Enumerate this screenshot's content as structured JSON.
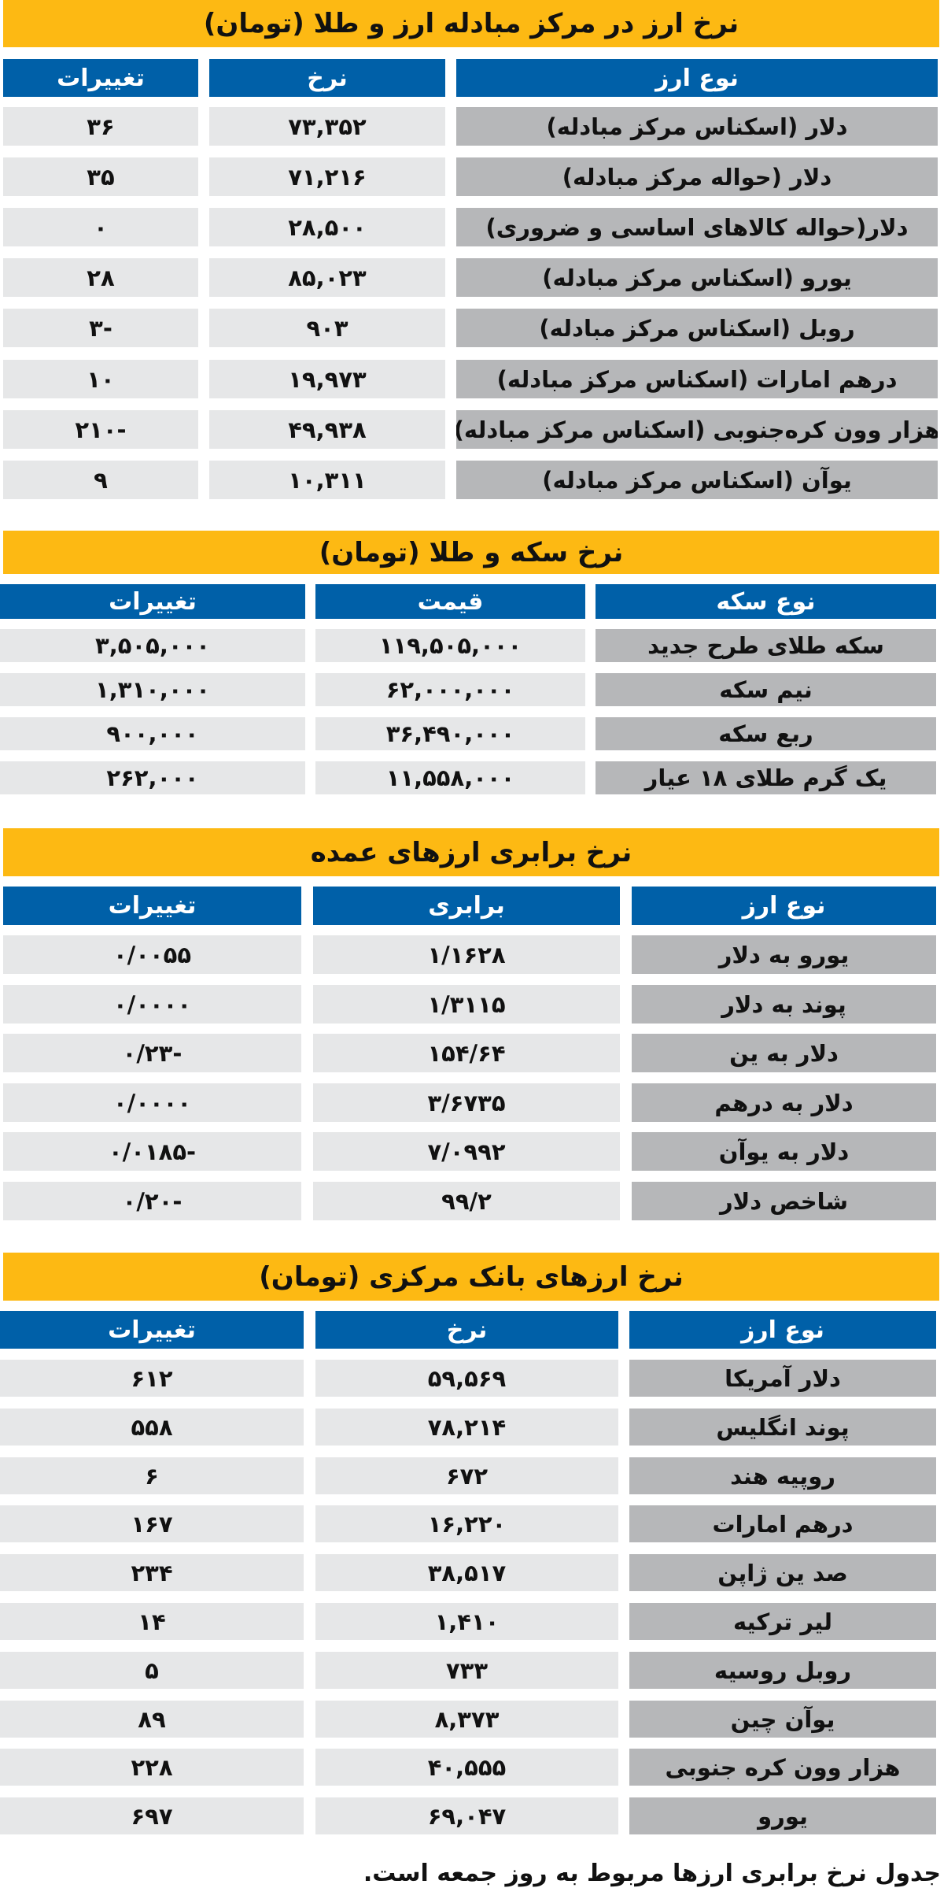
{
  "colors": {
    "title_bar": "#FDB913",
    "header": "#0060A8",
    "label_cell": "#B6B7B9",
    "value_cell": "#E6E7E8"
  },
  "tables": [
    {
      "title": "نرخ ارز در مرکز مبادله ارز و طلا (تومان)",
      "headers": [
        "نوع ارز",
        "نرخ",
        "تغییرات"
      ],
      "rows": [
        [
          "دلار (اسکناس مرکز مبادله)",
          "۷۳,۳۵۲",
          "۳۶"
        ],
        [
          "دلار (حواله مرکز مبادله)",
          "۷۱,۲۱۶",
          "۳۵"
        ],
        [
          "دلار(حواله کالاهای اساسی و ضروری)",
          "۲۸,۵۰۰",
          "۰"
        ],
        [
          "یورو (اسکناس مرکز مبادله)",
          "۸۵,۰۲۳",
          "۲۸"
        ],
        [
          "روبل (اسکناس مرکز مبادله)",
          "۹۰۳",
          "-۳"
        ],
        [
          "درهم امارات (اسکناس مرکز مبادله)",
          "۱۹,۹۷۳",
          "۱۰"
        ],
        [
          "هزار وون کره‌جنوبی (اسکناس مرکز مبادله)",
          "۴۹,۹۳۸",
          "-۲۱۰"
        ],
        [
          "یوآن (اسکناس مرکز مبادله)",
          "۱۰,۳۱۱",
          "۹"
        ]
      ]
    },
    {
      "title": "نرخ سکه و طلا  (تومان)",
      "headers": [
        "نوع سکه",
        "قیمت",
        "تغییرات"
      ],
      "rows": [
        [
          "سکه طلای طرح جدید",
          "۱۱۹,۵۰۵,۰۰۰",
          "۳,۵۰۵,۰۰۰"
        ],
        [
          "نیم سکه",
          "۶۲,۰۰۰,۰۰۰",
          "۱,۳۱۰,۰۰۰"
        ],
        [
          "ربع سکه",
          "۳۶,۴۹۰,۰۰۰",
          "۹۰۰,۰۰۰"
        ],
        [
          "یک گرم طلای ۱۸ عیار",
          "۱۱,۵۵۸,۰۰۰",
          "۲۶۲,۰۰۰"
        ]
      ]
    },
    {
      "title": "نرخ برابری ارزهای عمده",
      "headers": [
        "نوع ارز",
        "برابری",
        "تغییرات"
      ],
      "rows": [
        [
          "یورو به دلار",
          "۱/۱۶۲۸",
          "۰/۰۰۵۵"
        ],
        [
          "پوند به دلار",
          "۱/۳۱۱۵",
          "۰/۰۰۰۰"
        ],
        [
          "دلار به ین",
          "۱۵۴/۶۴",
          "-۰/۲۳"
        ],
        [
          "دلار به درهم",
          "۳/۶۷۳۵",
          "۰/۰۰۰۰"
        ],
        [
          "دلار به یوآن",
          "۷/۰۹۹۲",
          "-۰/۰۱۸۵"
        ],
        [
          "شاخص دلار",
          "۹۹/۲",
          "-۰/۲۰"
        ]
      ]
    },
    {
      "title": "نرخ ارزهای بانک مرکزی (تومان)",
      "headers": [
        "نوع ارز",
        "نرخ",
        "تغییرات"
      ],
      "rows": [
        [
          "دلار آمریکا",
          "۵۹,۵۶۹",
          "۶۱۲"
        ],
        [
          "پوند انگلیس",
          "۷۸,۲۱۴",
          "۵۵۸"
        ],
        [
          "روپیه هند",
          "۶۷۲",
          "۶"
        ],
        [
          "درهم امارات",
          "۱۶,۲۲۰",
          "۱۶۷"
        ],
        [
          "صد ین ژاپن",
          "۳۸,۵۱۷",
          "۲۳۴"
        ],
        [
          "لیر ترکیه",
          "۱,۴۱۰",
          "۱۴"
        ],
        [
          "روبل روسیه",
          "۷۳۳",
          "۵"
        ],
        [
          "یوآن چین",
          "۸,۳۷۳",
          "۸۹"
        ],
        [
          "هزار وون کره جنوبی",
          "۴۰,۵۵۵",
          "۲۲۸"
        ],
        [
          "یورو",
          "۶۹,۰۴۷",
          "۶۹۷"
        ]
      ]
    }
  ],
  "footer": "جدول نرخ برابری ارزها مربوط به روز جمعه است."
}
